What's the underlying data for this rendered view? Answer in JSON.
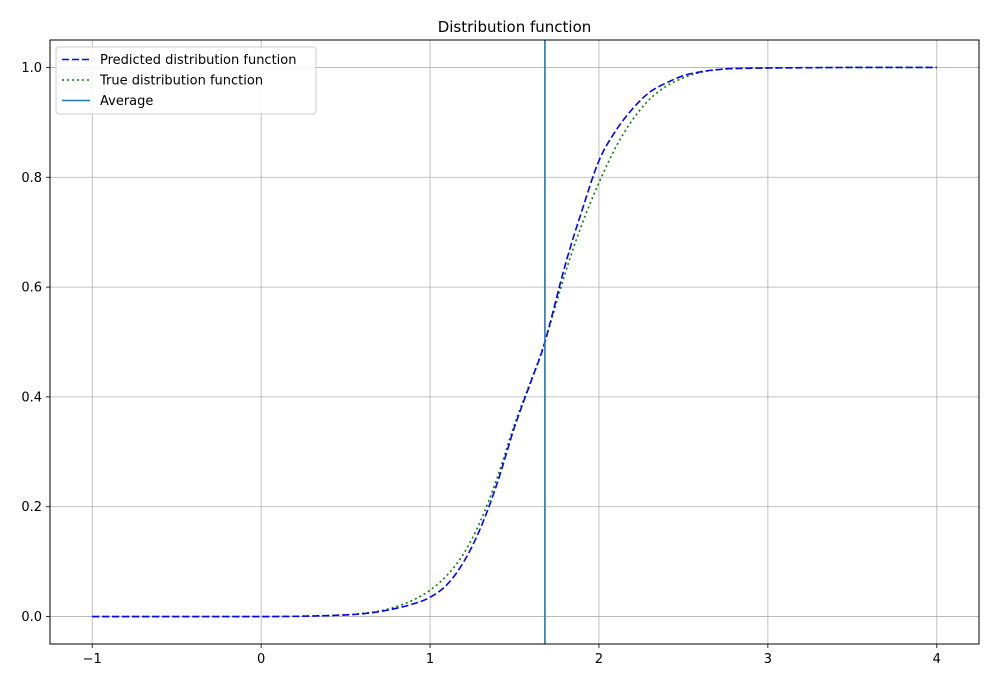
{
  "chart_data": {
    "type": "line",
    "title": "Distribution function",
    "xlabel": "",
    "ylabel": "",
    "xlim": [
      -1.25,
      4.25
    ],
    "ylim": [
      -0.05,
      1.05
    ],
    "xticks": [
      -1,
      0,
      1,
      2,
      3,
      4
    ],
    "xtick_labels": [
      "−1",
      "0",
      "1",
      "2",
      "3",
      "4"
    ],
    "yticks": [
      0.0,
      0.2,
      0.4,
      0.6,
      0.8,
      1.0
    ],
    "ytick_labels": [
      "0.0",
      "0.2",
      "0.4",
      "0.6",
      "0.8",
      "1.0"
    ],
    "grid": true,
    "legend_position": "top-left",
    "series": [
      {
        "name": "Predicted distribution function",
        "style": "dashed",
        "color": "#0000ff",
        "x": [
          -1.0,
          0.0,
          0.3,
          0.5,
          0.6,
          0.7,
          0.8,
          0.9,
          1.0,
          1.1,
          1.2,
          1.3,
          1.4,
          1.5,
          1.6,
          1.68,
          1.8,
          1.9,
          2.0,
          2.1,
          2.2,
          2.3,
          2.4,
          2.5,
          2.6,
          2.7,
          2.8,
          3.0,
          3.5,
          4.0
        ],
        "values": [
          0.0,
          0.0,
          0.001,
          0.003,
          0.005,
          0.009,
          0.015,
          0.023,
          0.035,
          0.058,
          0.1,
          0.162,
          0.245,
          0.345,
          0.43,
          0.5,
          0.64,
          0.74,
          0.83,
          0.885,
          0.925,
          0.955,
          0.972,
          0.985,
          0.992,
          0.996,
          0.998,
          0.999,
          1.0,
          1.0
        ]
      },
      {
        "name": "True distribution function",
        "style": "dotted",
        "color": "#008000",
        "x": [
          -1.0,
          0.0,
          0.3,
          0.5,
          0.6,
          0.7,
          0.8,
          0.9,
          1.0,
          1.1,
          1.2,
          1.3,
          1.4,
          1.5,
          1.6,
          1.68,
          1.8,
          1.9,
          2.0,
          2.1,
          2.2,
          2.3,
          2.4,
          2.5,
          2.6,
          2.7,
          2.8,
          3.0,
          3.5,
          4.0
        ],
        "values": [
          0.0,
          0.0,
          0.001,
          0.003,
          0.006,
          0.01,
          0.018,
          0.03,
          0.048,
          0.075,
          0.115,
          0.175,
          0.255,
          0.35,
          0.432,
          0.5,
          0.625,
          0.715,
          0.79,
          0.855,
          0.905,
          0.942,
          0.966,
          0.981,
          0.991,
          0.996,
          0.998,
          0.999,
          1.0,
          1.0
        ]
      }
    ],
    "vlines": [
      {
        "name": "Average",
        "x": 1.68,
        "color": "#1f77b4"
      }
    ]
  }
}
